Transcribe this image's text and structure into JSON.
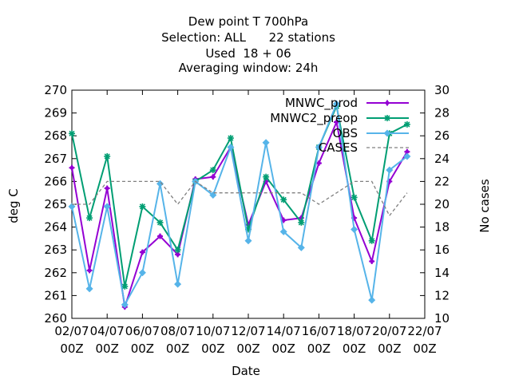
{
  "chart_data": {
    "type": "line",
    "title_lines": [
      "Dew point T 700hPa",
      "Selection: ALL      22 stations",
      "Used  18 + 06",
      "Averaging window: 24h"
    ],
    "xlabel": "Date",
    "ylabel": "deg C",
    "y2label": "No cases",
    "ylim": [
      260,
      270
    ],
    "y2lim": [
      10,
      30
    ],
    "y_ticks": [
      "260",
      "261",
      "262",
      "263",
      "264",
      "265",
      "266",
      "267",
      "268",
      "269",
      "270"
    ],
    "y2_ticks": [
      "10",
      "12",
      "14",
      "16",
      "18",
      "20",
      "22",
      "24",
      "26",
      "28",
      "30"
    ],
    "x_ticks": [
      {
        "date": "02/07",
        "time": "00Z"
      },
      {
        "date": "04/07",
        "time": "00Z"
      },
      {
        "date": "06/07",
        "time": "00Z"
      },
      {
        "date": "08/07",
        "time": "00Z"
      },
      {
        "date": "10/07",
        "time": "00Z"
      },
      {
        "date": "12/07",
        "time": "00Z"
      },
      {
        "date": "14/07",
        "time": "00Z"
      },
      {
        "date": "16/07",
        "time": "00Z"
      },
      {
        "date": "18/07",
        "time": "00Z"
      },
      {
        "date": "20/07",
        "time": "00Z"
      },
      {
        "date": "22/07",
        "time": "00Z"
      }
    ],
    "x_day_range": [
      2,
      22
    ],
    "x_days": [
      2,
      3,
      4,
      5,
      6,
      7,
      8,
      9,
      10,
      11,
      12,
      13,
      14,
      15,
      16,
      17,
      18,
      19,
      20,
      21
    ],
    "grid": false,
    "legend_position": "top-right",
    "series": [
      {
        "name": "MNWC_prod",
        "color": "#9400d3",
        "marker": "plus",
        "axis": "y",
        "values": [
          266.6,
          262.1,
          265.7,
          260.5,
          262.9,
          263.6,
          262.8,
          266.1,
          266.2,
          267.5,
          264.1,
          266.0,
          264.3,
          264.4,
          266.8,
          268.6,
          264.4,
          262.5,
          266.0,
          267.3
        ]
      },
      {
        "name": "MNWC2_preop",
        "color": "#009e73",
        "marker": "asterisk",
        "axis": "y",
        "values": [
          268.1,
          264.4,
          267.1,
          261.4,
          264.9,
          264.2,
          263.0,
          266.0,
          266.5,
          267.9,
          263.9,
          266.2,
          265.2,
          264.2,
          267.5,
          269.3,
          265.3,
          263.4,
          268.1,
          268.5
        ]
      },
      {
        "name": "OBS",
        "color": "#56b4e9",
        "marker": "diamond",
        "axis": "y",
        "values": [
          264.9,
          261.3,
          264.9,
          260.6,
          262.0,
          265.9,
          261.5,
          266.0,
          265.4,
          267.5,
          263.4,
          267.7,
          263.8,
          263.1,
          267.5,
          269.4,
          263.9,
          260.8,
          266.5,
          267.1
        ]
      },
      {
        "name": "CASES",
        "color": "#808080",
        "marker": "none",
        "axis": "y2",
        "dashed": true,
        "values": [
          20,
          20,
          22,
          22,
          22,
          22,
          20,
          22,
          21,
          21,
          21,
          21,
          21,
          21,
          20,
          21,
          22,
          22,
          19,
          21
        ]
      }
    ]
  }
}
